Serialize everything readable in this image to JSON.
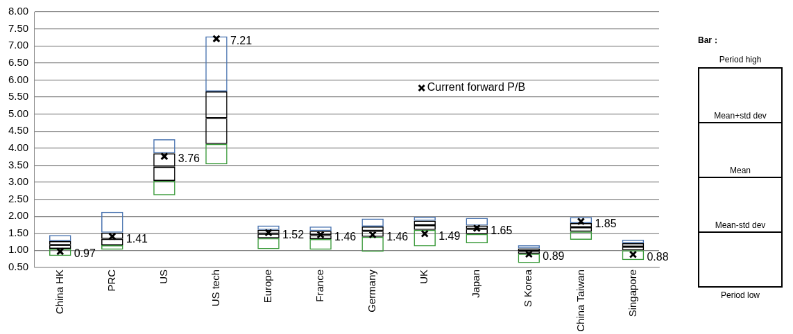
{
  "chart_data": {
    "type": "bar",
    "categories": [
      "China HK",
      "PRC",
      "US",
      "US tech",
      "Europe",
      "France",
      "Germany",
      "UK",
      "Japan",
      "S Korea",
      "China Taiwan",
      "Singapore"
    ],
    "series": [
      {
        "color": "#3a9a3a",
        "base": [
          0.84,
          1.02,
          2.62,
          3.53,
          1.04,
          1.02,
          0.96,
          1.12,
          1.21,
          0.63,
          1.31,
          0.72
        ],
        "values": [
          0.21,
          0.13,
          0.42,
          0.59,
          0.32,
          0.31,
          0.44,
          0.48,
          0.27,
          0.27,
          0.24,
          0.28
        ]
      },
      {
        "color": "#000000",
        "base": [
          1.05,
          1.15,
          3.04,
          4.12,
          1.36,
          1.33,
          1.4,
          1.6,
          1.48,
          0.9,
          1.55,
          1.0
        ],
        "values": [
          0.11,
          0.19,
          0.41,
          0.76,
          0.13,
          0.12,
          0.17,
          0.14,
          0.15,
          0.08,
          0.13,
          0.11
        ]
      },
      {
        "color": "#000000",
        "base": [
          1.16,
          1.34,
          3.45,
          4.88,
          1.49,
          1.45,
          1.57,
          1.74,
          1.63,
          0.98,
          1.68,
          1.11
        ],
        "values": [
          0.11,
          0.18,
          0.4,
          0.78,
          0.11,
          0.12,
          0.13,
          0.13,
          0.1,
          0.08,
          0.12,
          0.1
        ]
      },
      {
        "color": "#4a74b0",
        "base": [
          1.27,
          1.52,
          3.85,
          5.66,
          1.6,
          1.57,
          1.7,
          1.87,
          1.73,
          1.06,
          1.8,
          1.21
        ],
        "values": [
          0.18,
          0.61,
          0.41,
          1.62,
          0.13,
          0.13,
          0.23,
          0.12,
          0.22,
          0.09,
          0.18,
          0.1
        ]
      },
      {
        "type": "scatter",
        "name": "Current forward P/B",
        "color": "#000000",
        "x": [
          "China HK",
          "PRC",
          "US",
          "US tech",
          "Europe",
          "France",
          "Germany",
          "UK",
          "Japan",
          "S Korea",
          "China Taiwan",
          "Singapore"
        ],
        "values": [
          0.97,
          1.41,
          3.76,
          7.21,
          1.52,
          1.46,
          1.46,
          1.49,
          1.65,
          0.89,
          1.85,
          0.88
        ],
        "value_labels": [
          "0.97",
          "1.41",
          "3.76",
          "7.21",
          "1.52",
          "1.46",
          "1.46",
          "1.49",
          "1.65",
          "0.89",
          "1.85",
          "0.88"
        ]
      }
    ],
    "marker": "cross",
    "ylim": [
      0.5,
      8
    ],
    "yticks": [
      {
        "value": 0.5,
        "label": "0.50"
      },
      {
        "value": 1,
        "label": "1.00"
      },
      {
        "value": 1.5,
        "label": "1.50"
      },
      {
        "value": 2,
        "label": "2.00"
      },
      {
        "value": 2.5,
        "label": "2.50"
      },
      {
        "value": 3,
        "label": "3.00"
      },
      {
        "value": 3.5,
        "label": "3.50"
      },
      {
        "value": 4,
        "label": "4.00"
      },
      {
        "value": 4.5,
        "label": "4.50"
      },
      {
        "value": 5,
        "label": "5.00"
      },
      {
        "value": 5.5,
        "label": "5.50"
      },
      {
        "value": 6,
        "label": "6.00"
      },
      {
        "value": 6.5,
        "label": "6.50"
      },
      {
        "value": 7,
        "label": "7.00"
      },
      {
        "value": 7.5,
        "label": "7.50"
      },
      {
        "value": 8,
        "label": "8.00"
      }
    ],
    "grid": "y",
    "legend": "top right",
    "annotations": [
      "Bar：",
      "Period high",
      "Mean+std dev",
      "Mean",
      "Mean-std dev",
      "Period low"
    ]
  }
}
